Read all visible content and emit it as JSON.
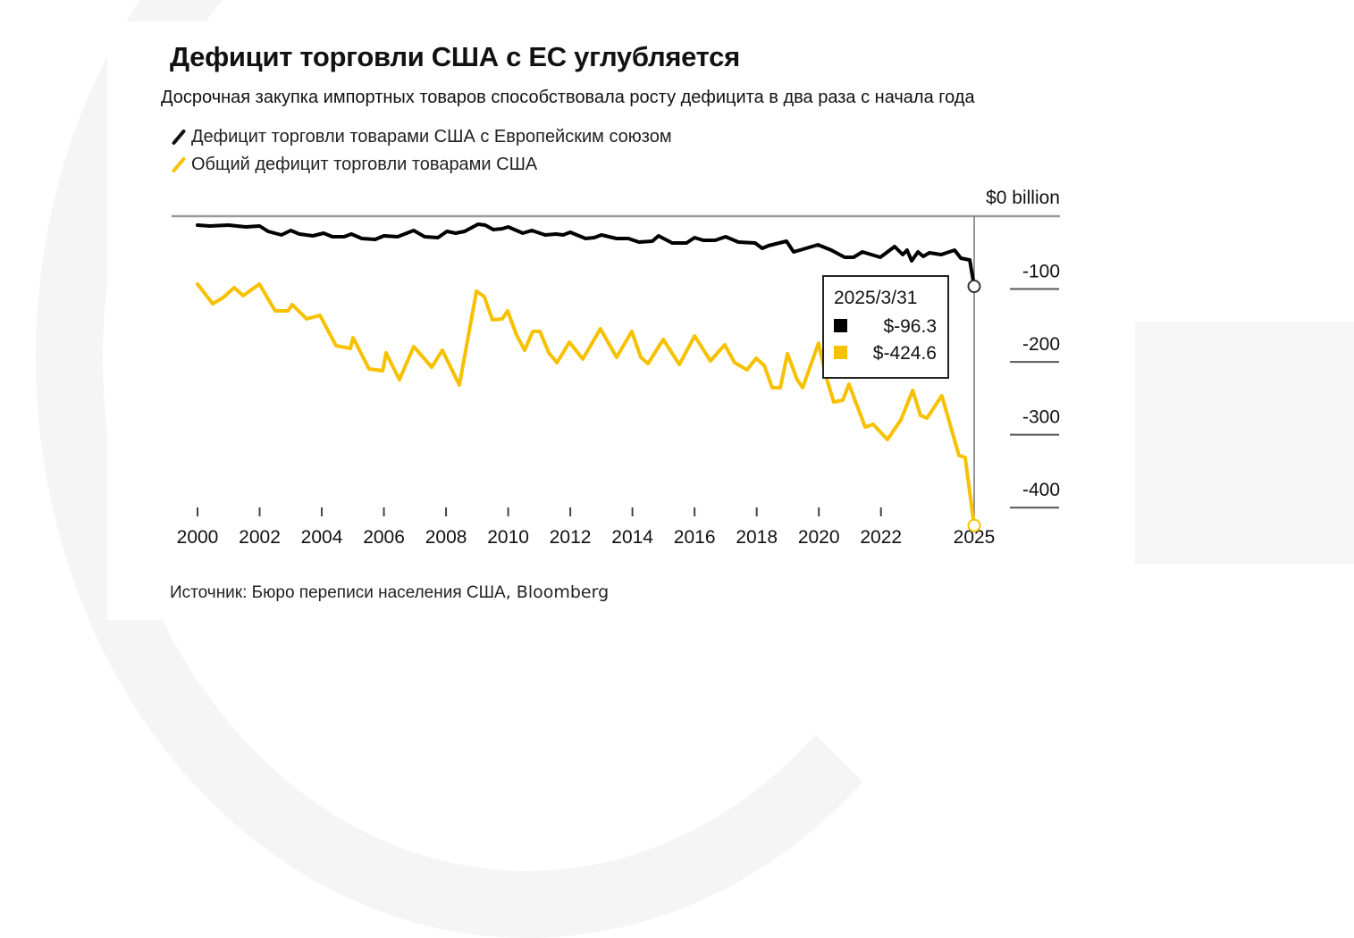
{
  "chart_data": {
    "type": "line",
    "title": "Дефицит торговли США с ЕС углубляется",
    "subtitle": "Досрочная закупка импортных товаров способствовала росту дефицита в два раза с начала года",
    "xlabel": "",
    "ylabel": "$0 billion",
    "y_unit_label": "$0 billion",
    "ylim": [
      -430,
      0
    ],
    "xlim": [
      2000,
      2025
    ],
    "y_ticks": [
      0,
      -100,
      -200,
      -300,
      -400
    ],
    "y_tick_labels": [
      "$0 billion",
      "-100",
      "-200",
      "-300",
      "-400"
    ],
    "x_ticks": [
      2000,
      2002,
      2004,
      2006,
      2008,
      2010,
      2012,
      2014,
      2016,
      2018,
      2020,
      2022,
      2025
    ],
    "x_tick_labels": [
      "2000",
      "2002",
      "2004",
      "2006",
      "2008",
      "2010",
      "2012",
      "2014",
      "2016",
      "2018",
      "2020",
      "2022",
      "2025"
    ],
    "grid": false,
    "legend_position": "top-left",
    "series": [
      {
        "name": "Дефицит торговли товарами США с Европейским союзом",
        "color": "#000000",
        "x": [
          2000.0,
          2000.4,
          2001.0,
          2001.55,
          2002.0,
          2002.27,
          2002.7,
          2003.0,
          2003.28,
          2003.71,
          2004.06,
          2004.34,
          2004.72,
          2004.95,
          2005.29,
          2005.72,
          2006.0,
          2006.44,
          2006.96,
          2007.31,
          2007.74,
          2008.03,
          2008.31,
          2008.6,
          2009.03,
          2009.26,
          2009.52,
          2009.81,
          2010.0,
          2010.47,
          2010.76,
          2011.19,
          2011.54,
          2011.77,
          2012.0,
          2012.49,
          2012.77,
          2013.0,
          2013.49,
          2013.87,
          2014.21,
          2014.64,
          2014.84,
          2015.28,
          2015.74,
          2016.0,
          2016.28,
          2016.66,
          2017.0,
          2017.41,
          2017.95,
          2018.18,
          2018.38,
          2018.96,
          2019.19,
          2019.39,
          2019.97,
          2020.4,
          2020.83,
          2021.12,
          2021.4,
          2021.98,
          2022.44,
          2022.7,
          2022.84,
          2022.99,
          2023.19,
          2023.36,
          2023.56,
          2023.94,
          2024.37,
          2024.57,
          2024.86,
          2025.0
        ],
        "values": [
          -12.3,
          -13.5,
          -12.3,
          -14.7,
          -13.5,
          -20.8,
          -25.8,
          -19.6,
          -24.5,
          -27.0,
          -23.3,
          -28.2,
          -28.2,
          -24.5,
          -30.7,
          -31.9,
          -27.0,
          -28.2,
          -19.6,
          -28.2,
          -29.4,
          -20.8,
          -23.3,
          -20.8,
          -11.0,
          -12.3,
          -18.4,
          -17.2,
          -14.7,
          -23.3,
          -19.6,
          -25.8,
          -24.5,
          -25.8,
          -22.1,
          -30.7,
          -29.4,
          -25.8,
          -30.7,
          -30.7,
          -35.6,
          -34.3,
          -27.0,
          -36.8,
          -36.8,
          -29.4,
          -33.1,
          -33.1,
          -28.2,
          -35.6,
          -36.8,
          -44.1,
          -40.5,
          -34.3,
          -49.0,
          -46.6,
          -39.2,
          -46.6,
          -56.4,
          -56.4,
          -49.0,
          -56.4,
          -41.7,
          -52.7,
          -46.6,
          -61.3,
          -49.0,
          -55.2,
          -50.3,
          -52.7,
          -46.6,
          -57.6,
          -60.1,
          -96.3
        ]
      },
      {
        "name": "Общий дефицит торговли товарами США",
        "color": "#f7c100",
        "x": [
          2000.0,
          2000.49,
          2000.83,
          2001.18,
          2001.47,
          2001.99,
          2002.5,
          2002.91,
          2003.05,
          2003.51,
          2003.94,
          2004.46,
          2004.92,
          2005.01,
          2005.52,
          2005.96,
          2006.07,
          2006.5,
          2006.96,
          2007.54,
          2007.88,
          2008.43,
          2008.98,
          2009.23,
          2009.49,
          2009.81,
          2009.98,
          2010.27,
          2010.53,
          2010.79,
          2011.02,
          2011.31,
          2011.57,
          2011.97,
          2012.4,
          2012.97,
          2013.49,
          2013.98,
          2014.27,
          2014.5,
          2014.99,
          2015.51,
          2016.0,
          2016.51,
          2016.97,
          2017.29,
          2017.69,
          2017.98,
          2018.24,
          2018.5,
          2018.76,
          2018.99,
          2019.3,
          2019.48,
          2019.99,
          2020.22,
          2020.48,
          2020.77,
          2020.97,
          2021.49,
          2021.75,
          2022.21,
          2022.64,
          2023.02,
          2023.27,
          2023.48,
          2023.96,
          2024.51,
          2024.71,
          2025.0
        ],
        "values": [
          -93.2,
          -120.2,
          -111.6,
          -98.1,
          -109.1,
          -93.2,
          -130.0,
          -130.0,
          -121.4,
          -141.0,
          -136.1,
          -177.8,
          -181.5,
          -166.8,
          -209.7,
          -212.1,
          -187.6,
          -224.4,
          -179.0,
          -207.2,
          -183.9,
          -231.8,
          -103.0,
          -110.4,
          -142.2,
          -141.0,
          -130.0,
          -163.1,
          -183.9,
          -158.2,
          -158.2,
          -187.6,
          -201.1,
          -172.9,
          -196.2,
          -154.5,
          -193.7,
          -158.2,
          -193.7,
          -202.3,
          -169.2,
          -203.6,
          -164.3,
          -198.7,
          -176.6,
          -201.1,
          -210.9,
          -195.0,
          -204.8,
          -235.4,
          -235.4,
          -188.8,
          -224.4,
          -235.4,
          -174.1,
          -218.3,
          -255.1,
          -252.6,
          -230.5,
          -289.4,
          -285.7,
          -306.6,
          -279.6,
          -239.1,
          -273.5,
          -277.1,
          -246.5,
          -328.6,
          -331.1,
          -424.6
        ]
      }
    ],
    "annotation": {
      "date": "2025/3/31",
      "entries": [
        {
          "series": "Дефицит торговли товарами США с Европейским союзом",
          "label": "$-96.3",
          "value": -96.3,
          "color": "#000000"
        },
        {
          "series": "Общий дефицит торговли товарами США",
          "label": "$-424.6",
          "value": -424.6,
          "color": "#f7c100"
        }
      ]
    },
    "source": "Источник: Бюро переписи населения США",
    "source_brand": ", Bloomberg"
  }
}
